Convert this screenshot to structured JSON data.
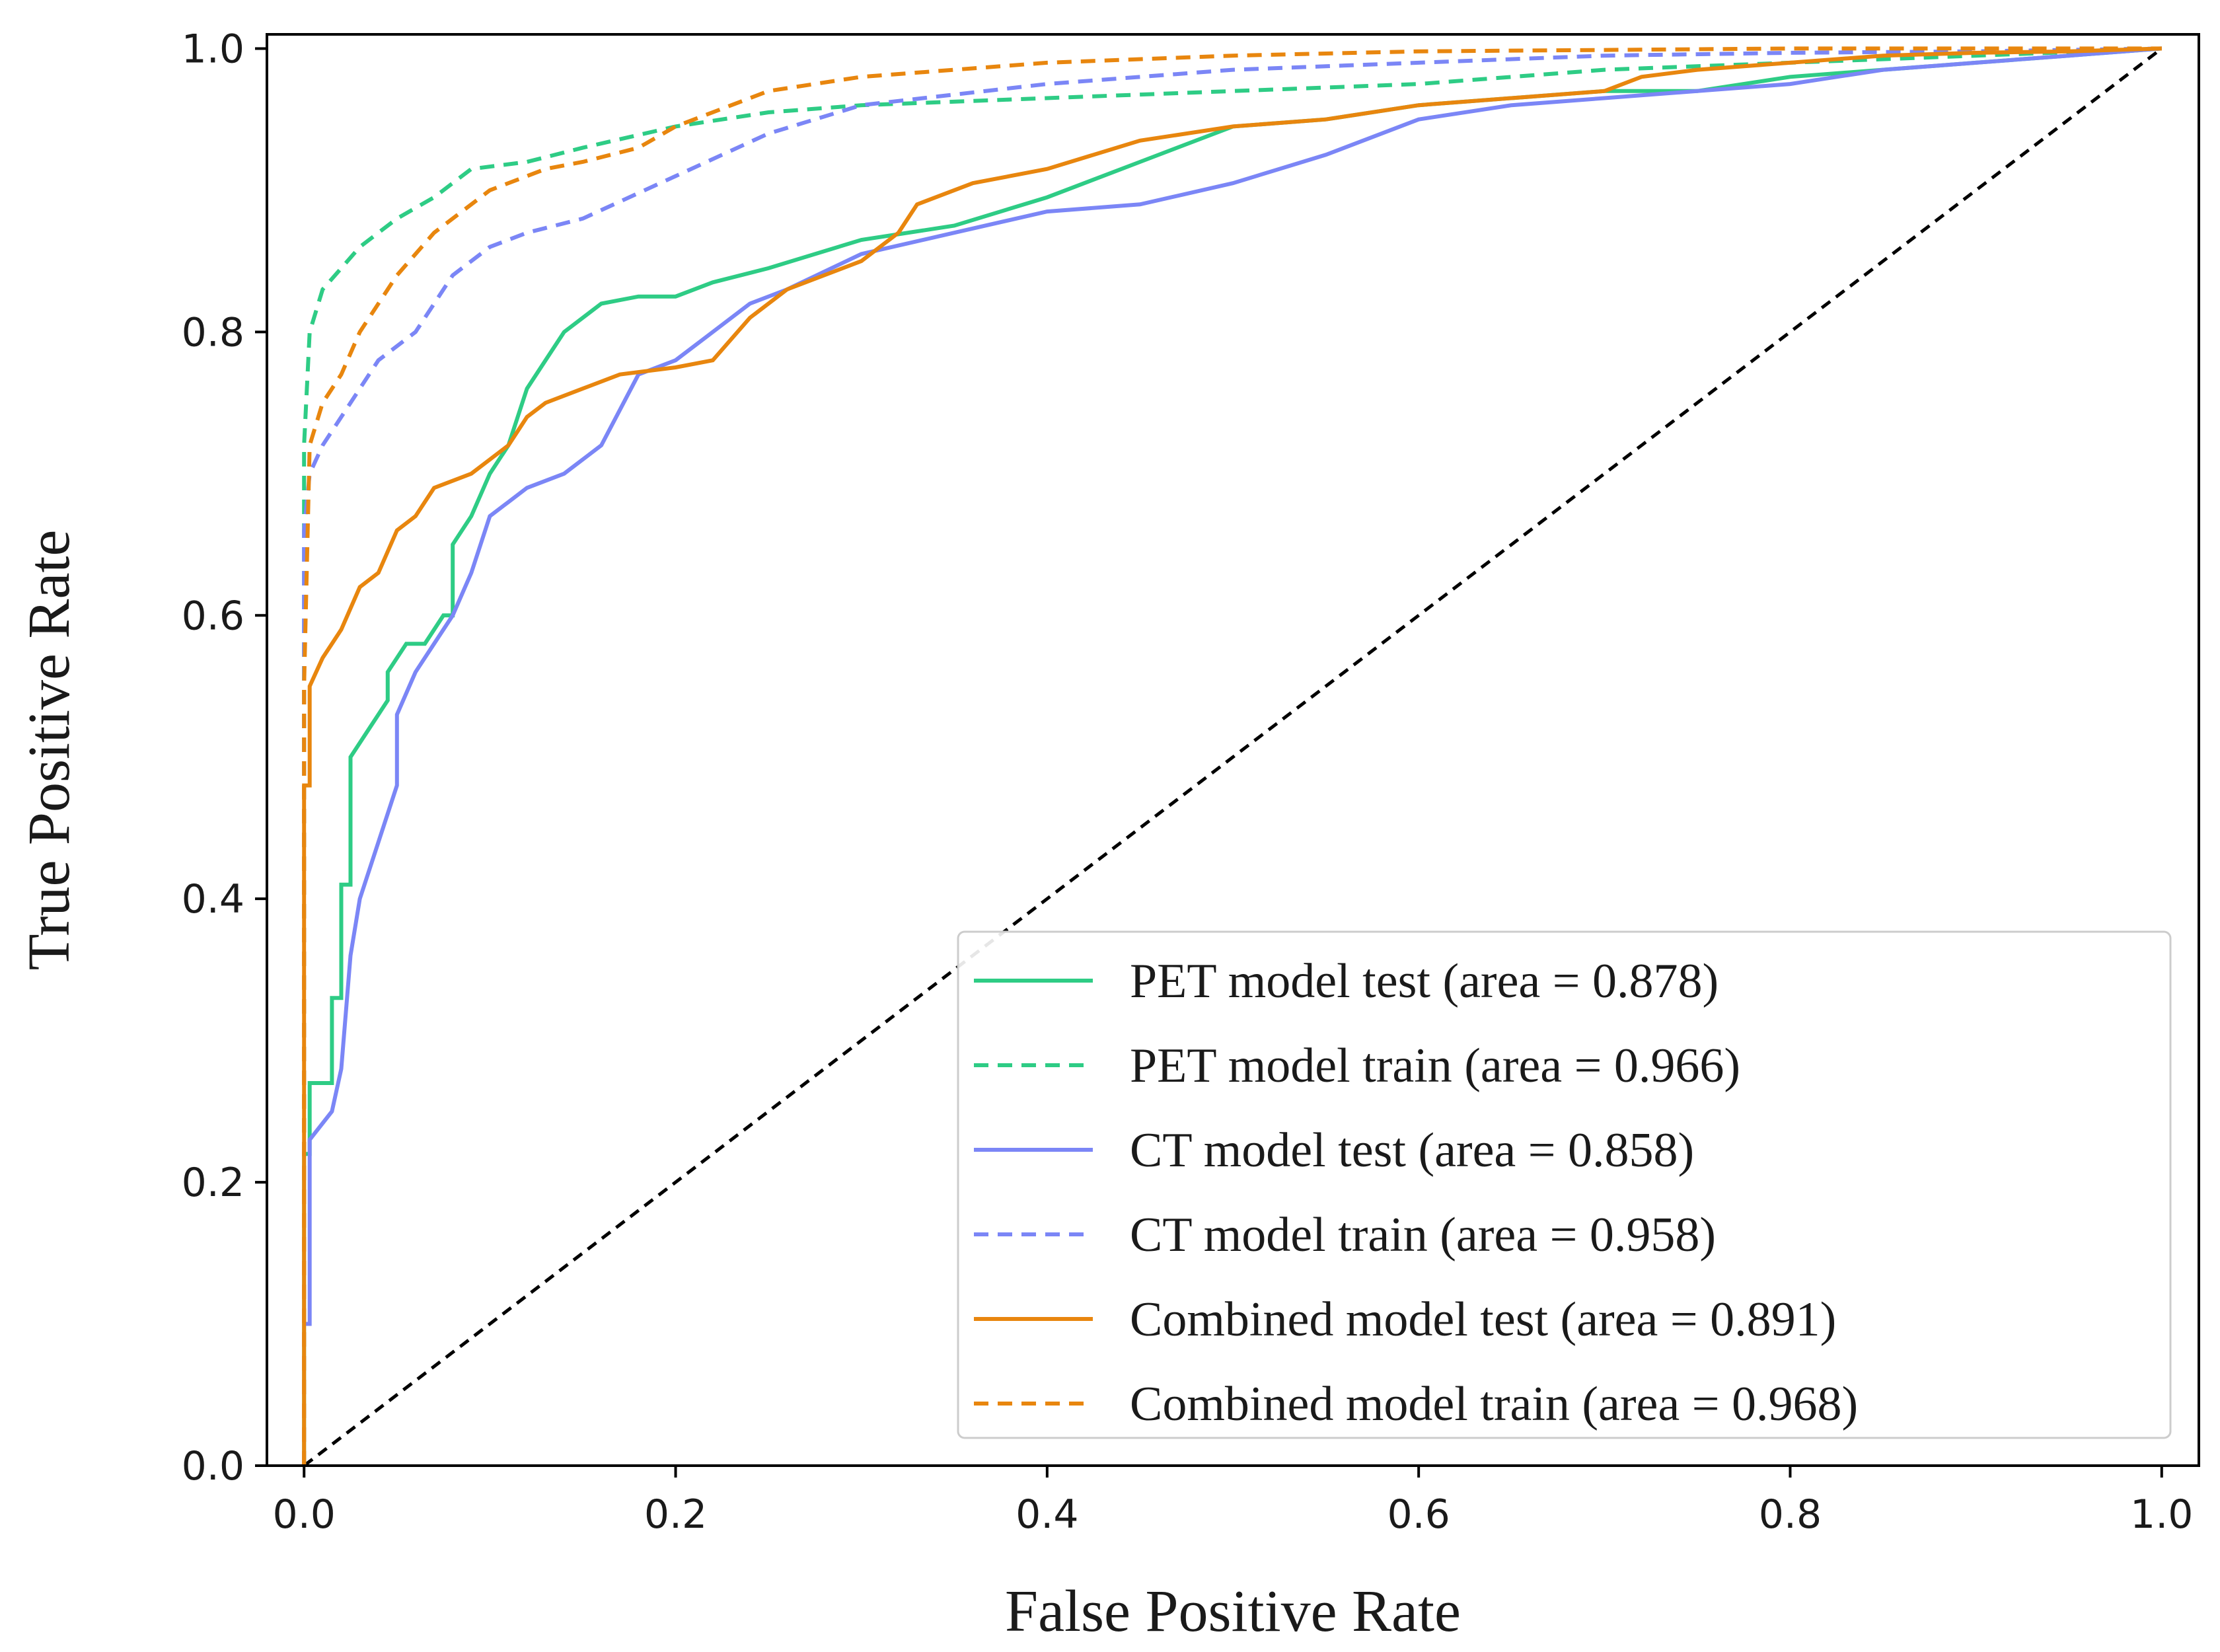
{
  "chart_data": {
    "type": "line",
    "title": "",
    "xlabel": "False Positive Rate",
    "ylabel": "True Positive Rate",
    "xlim": [
      -0.02,
      1.02
    ],
    "ylim": [
      0.0,
      1.01
    ],
    "xticks": [
      0.0,
      0.2,
      0.4,
      0.6,
      0.8,
      1.0
    ],
    "yticks": [
      0.0,
      0.2,
      0.4,
      0.6,
      0.8,
      1.0
    ],
    "xtick_labels": [
      "0.0",
      "0.2",
      "0.4",
      "0.6",
      "0.8",
      "1.0"
    ],
    "ytick_labels": [
      "0.0",
      "0.2",
      "0.4",
      "0.6",
      "0.8",
      "1.0"
    ],
    "grid": false,
    "legend_position": "lower-right",
    "diagonal": {
      "x": [
        0,
        1
      ],
      "y": [
        0,
        1
      ],
      "color": "#000000",
      "dash": "dashed"
    },
    "series": [
      {
        "name": "PET model test (area = 0.878)",
        "color": "#2ecc85",
        "dash": "solid",
        "x": [
          0,
          0,
          0.003,
          0.003,
          0.015,
          0.015,
          0.02,
          0.02,
          0.025,
          0.025,
          0.035,
          0.045,
          0.045,
          0.055,
          0.065,
          0.075,
          0.08,
          0.08,
          0.09,
          0.1,
          0.11,
          0.12,
          0.13,
          0.14,
          0.16,
          0.18,
          0.2,
          0.22,
          0.25,
          0.3,
          0.35,
          0.4,
          0.45,
          0.5,
          0.55,
          0.6,
          0.65,
          0.7,
          0.75,
          0.8,
          0.85,
          0.9,
          0.95,
          1.0
        ],
        "y": [
          0,
          0.22,
          0.22,
          0.27,
          0.27,
          0.33,
          0.33,
          0.41,
          0.41,
          0.5,
          0.52,
          0.54,
          0.56,
          0.58,
          0.58,
          0.6,
          0.6,
          0.65,
          0.67,
          0.7,
          0.72,
          0.76,
          0.78,
          0.8,
          0.82,
          0.825,
          0.825,
          0.835,
          0.845,
          0.865,
          0.875,
          0.895,
          0.92,
          0.945,
          0.95,
          0.96,
          0.965,
          0.97,
          0.97,
          0.98,
          0.985,
          0.99,
          0.995,
          1.0
        ]
      },
      {
        "name": "PET model train (area = 0.966)",
        "color": "#2ecc85",
        "dash": "dashed",
        "x": [
          0,
          0,
          0.003,
          0.01,
          0.02,
          0.03,
          0.05,
          0.07,
          0.09,
          0.12,
          0.15,
          0.2,
          0.25,
          0.3,
          0.4,
          0.5,
          0.6,
          0.7,
          0.8,
          0.9,
          1.0
        ],
        "y": [
          0,
          0.72,
          0.8,
          0.83,
          0.845,
          0.86,
          0.88,
          0.895,
          0.915,
          0.92,
          0.93,
          0.945,
          0.955,
          0.96,
          0.965,
          0.97,
          0.975,
          0.985,
          0.99,
          0.995,
          1.0
        ]
      },
      {
        "name": "CT model test (area = 0.858)",
        "color": "#7b86f6",
        "dash": "solid",
        "x": [
          0,
          0.003,
          0.003,
          0.015,
          0.02,
          0.025,
          0.03,
          0.04,
          0.05,
          0.05,
          0.06,
          0.07,
          0.08,
          0.09,
          0.1,
          0.11,
          0.12,
          0.14,
          0.16,
          0.18,
          0.2,
          0.22,
          0.24,
          0.26,
          0.3,
          0.35,
          0.4,
          0.45,
          0.5,
          0.55,
          0.6,
          0.65,
          0.7,
          0.75,
          0.8,
          0.85,
          0.9,
          0.95,
          1.0
        ],
        "y": [
          0.1,
          0.1,
          0.23,
          0.25,
          0.28,
          0.36,
          0.4,
          0.44,
          0.48,
          0.53,
          0.56,
          0.58,
          0.6,
          0.63,
          0.67,
          0.68,
          0.69,
          0.7,
          0.72,
          0.77,
          0.78,
          0.8,
          0.82,
          0.83,
          0.855,
          0.87,
          0.885,
          0.89,
          0.905,
          0.925,
          0.95,
          0.96,
          0.965,
          0.97,
          0.975,
          0.985,
          0.99,
          0.995,
          1.0
        ]
      },
      {
        "name": "CT model train (area = 0.958)",
        "color": "#7b86f6",
        "dash": "dashed",
        "x": [
          0,
          0,
          0.003,
          0.01,
          0.02,
          0.03,
          0.04,
          0.06,
          0.08,
          0.1,
          0.12,
          0.15,
          0.2,
          0.25,
          0.3,
          0.4,
          0.5,
          0.6,
          0.7,
          0.8,
          0.9,
          1.0
        ],
        "y": [
          0,
          0.66,
          0.7,
          0.72,
          0.74,
          0.76,
          0.78,
          0.8,
          0.84,
          0.86,
          0.87,
          0.88,
          0.91,
          0.94,
          0.96,
          0.975,
          0.985,
          0.99,
          0.995,
          0.997,
          0.998,
          1.0
        ]
      },
      {
        "name": "Combined model test (area = 0.891)",
        "color": "#e8860e",
        "dash": "solid",
        "x": [
          0,
          0,
          0.003,
          0.003,
          0.01,
          0.015,
          0.02,
          0.03,
          0.04,
          0.05,
          0.06,
          0.07,
          0.09,
          0.1,
          0.11,
          0.12,
          0.13,
          0.15,
          0.17,
          0.2,
          0.22,
          0.24,
          0.26,
          0.3,
          0.32,
          0.33,
          0.36,
          0.4,
          0.45,
          0.5,
          0.55,
          0.6,
          0.65,
          0.7,
          0.72,
          0.75,
          0.8,
          0.85,
          0.9,
          0.95,
          1.0
        ],
        "y": [
          0,
          0.48,
          0.48,
          0.55,
          0.57,
          0.58,
          0.59,
          0.62,
          0.63,
          0.66,
          0.67,
          0.69,
          0.7,
          0.71,
          0.72,
          0.74,
          0.75,
          0.76,
          0.77,
          0.775,
          0.78,
          0.81,
          0.83,
          0.85,
          0.87,
          0.89,
          0.905,
          0.915,
          0.935,
          0.945,
          0.95,
          0.96,
          0.965,
          0.97,
          0.98,
          0.985,
          0.99,
          0.995,
          0.997,
          0.998,
          1.0
        ]
      },
      {
        "name": "Combined model train (area = 0.968)",
        "color": "#e8860e",
        "dash": "dashed",
        "x": [
          0,
          0,
          0.003,
          0.01,
          0.02,
          0.03,
          0.05,
          0.07,
          0.1,
          0.13,
          0.15,
          0.18,
          0.2,
          0.23,
          0.25,
          0.3,
          0.35,
          0.4,
          0.5,
          0.6,
          0.7,
          0.8,
          0.9,
          1.0
        ],
        "y": [
          0,
          0.55,
          0.72,
          0.75,
          0.77,
          0.8,
          0.84,
          0.87,
          0.9,
          0.915,
          0.92,
          0.93,
          0.945,
          0.96,
          0.97,
          0.98,
          0.985,
          0.99,
          0.995,
          0.998,
          0.999,
          1.0,
          1.0,
          1.0
        ]
      }
    ]
  }
}
